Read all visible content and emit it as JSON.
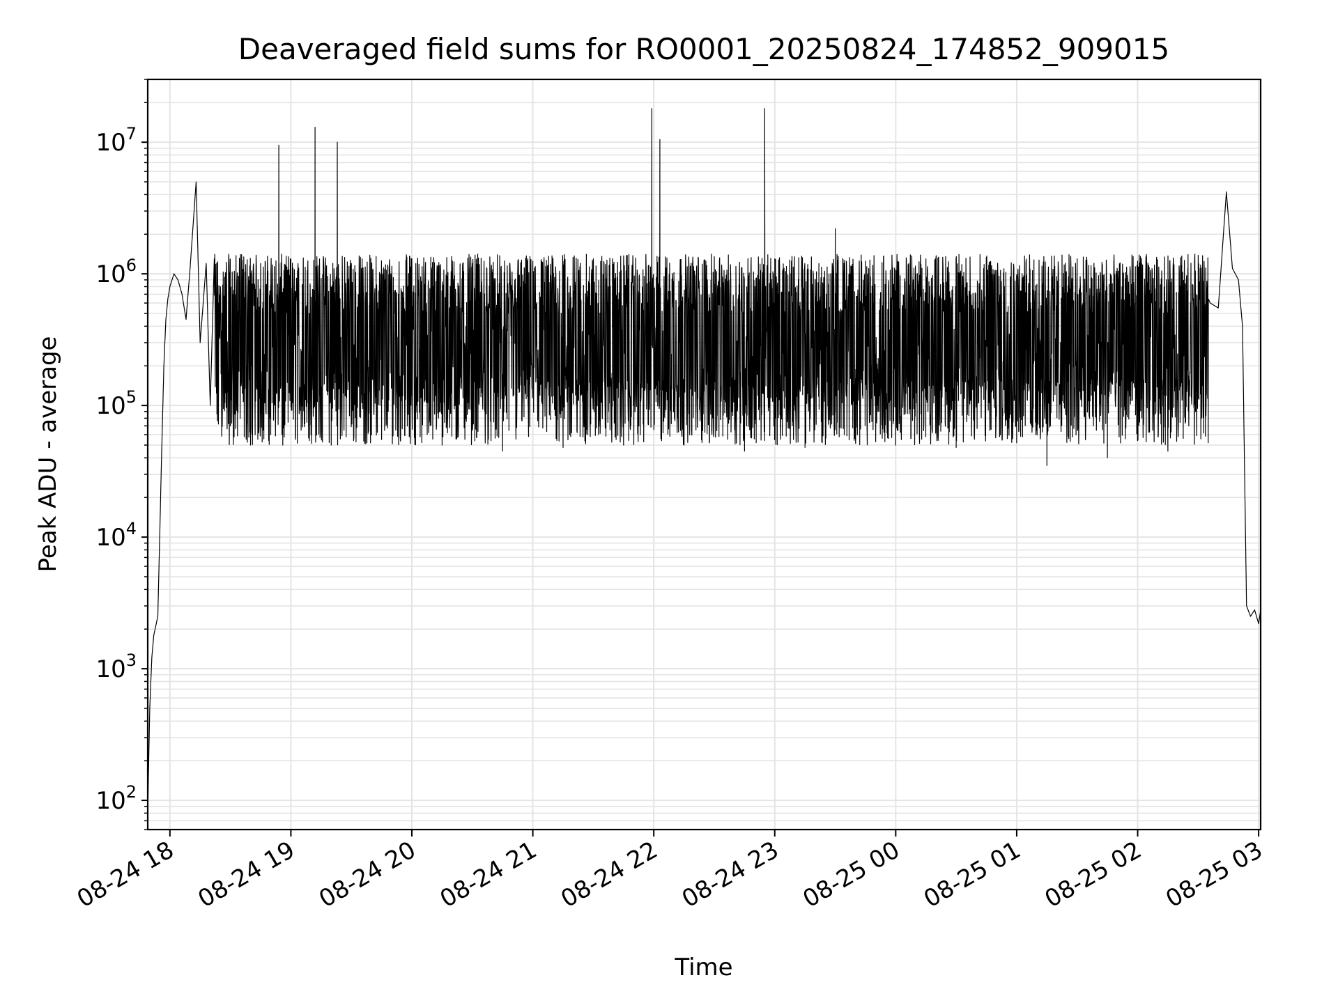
{
  "chart_data": {
    "type": "line",
    "title": "Deaveraged field sums for RO0001_20250824_174852_909015",
    "xlabel": "Time",
    "ylabel": "Peak ADU - average",
    "yscale": "log",
    "ylim": [
      60,
      30000000
    ],
    "xlim": [
      "08-24 17:49",
      "08-25 03:01"
    ],
    "grid": true,
    "x_ticks": [
      "08-24 18",
      "08-24 19",
      "08-24 20",
      "08-24 21",
      "08-24 22",
      "08-24 23",
      "08-25 00",
      "08-25 01",
      "08-25 02",
      "08-25 03"
    ],
    "y_ticks": [
      {
        "value": 100,
        "base": "10",
        "exp": "2"
      },
      {
        "value": 1000,
        "base": "10",
        "exp": "3"
      },
      {
        "value": 10000,
        "base": "10",
        "exp": "4"
      },
      {
        "value": 100000,
        "base": "10",
        "exp": "5"
      },
      {
        "value": 1000000,
        "base": "10",
        "exp": "6"
      },
      {
        "value": 10000000,
        "base": "10",
        "exp": "7"
      }
    ],
    "line_color": "#000000",
    "series": [
      {
        "x": [
          "08-24 17:49",
          "08-24 17:50",
          "08-24 17:51",
          "08-24 17:52",
          "08-24 17:54",
          "08-24 17:56",
          "08-24 17:57",
          "08-24 17:58",
          "08-24 17:59",
          "08-24 18:00",
          "08-24 18:02",
          "08-24 18:04",
          "08-24 18:06",
          "08-24 18:08",
          "08-24 18:10",
          "08-24 18:13",
          "08-24 18:15",
          "08-24 18:18",
          "08-24 18:20",
          "08-24 18:22",
          "08-24 18:25",
          "08-24 18:30",
          "08-24 18:35",
          "08-24 18:40",
          "08-24 18:45",
          "08-24 18:50",
          "08-24 18:54",
          "08-24 18:56",
          "08-24 19:00",
          "08-24 19:10",
          "08-24 19:12",
          "08-24 19:20",
          "08-24 19:23",
          "08-24 19:30",
          "08-24 19:45",
          "08-24 20:00",
          "08-24 20:15",
          "08-24 20:30",
          "08-24 20:45",
          "08-24 21:00",
          "08-24 21:15",
          "08-24 21:30",
          "08-24 21:45",
          "08-24 21:59",
          "08-24 22:03",
          "08-24 22:15",
          "08-24 22:30",
          "08-24 22:45",
          "08-24 22:55",
          "08-24 23:00",
          "08-24 23:15",
          "08-24 23:30",
          "08-24 23:45",
          "08-25 00:00",
          "08-25 00:15",
          "08-25 00:30",
          "08-25 00:45",
          "08-25 01:00",
          "08-25 01:15",
          "08-25 01:30",
          "08-25 01:45",
          "08-25 02:00",
          "08-25 02:15",
          "08-25 02:25",
          "08-25 02:36",
          "08-25 02:40",
          "08-25 02:44",
          "08-25 02:47",
          "08-25 02:50",
          "08-25 02:52",
          "08-25 02:54",
          "08-25 02:56",
          "08-25 02:58",
          "08-25 03:00",
          "08-25 03:01"
        ],
        "y": [
          80,
          500,
          1200,
          1800,
          2500,
          50000,
          200000,
          450000,
          650000,
          800000,
          1000000,
          900000,
          700000,
          450000,
          1100000,
          5000000,
          300000,
          1200000,
          100000,
          1300000,
          800000,
          70000,
          1400000,
          50000,
          1200000,
          60000,
          9500000,
          50000,
          1300000,
          60000,
          13000000,
          50000,
          10000000,
          1200000,
          55000,
          1300000,
          50000,
          1200000,
          45000,
          1250000,
          48000,
          1300000,
          50000,
          18000000,
          10500000,
          50000,
          1350000,
          45000,
          18000000,
          1300000,
          48000,
          2200000,
          1250000,
          50000,
          1300000,
          48000,
          1200000,
          52000,
          35000,
          1300000,
          40000,
          1250000,
          45000,
          1400000,
          600000,
          550000,
          4200000,
          1100000,
          900000,
          400000,
          3000,
          2500,
          2800,
          2200,
          2800
        ]
      }
    ]
  }
}
